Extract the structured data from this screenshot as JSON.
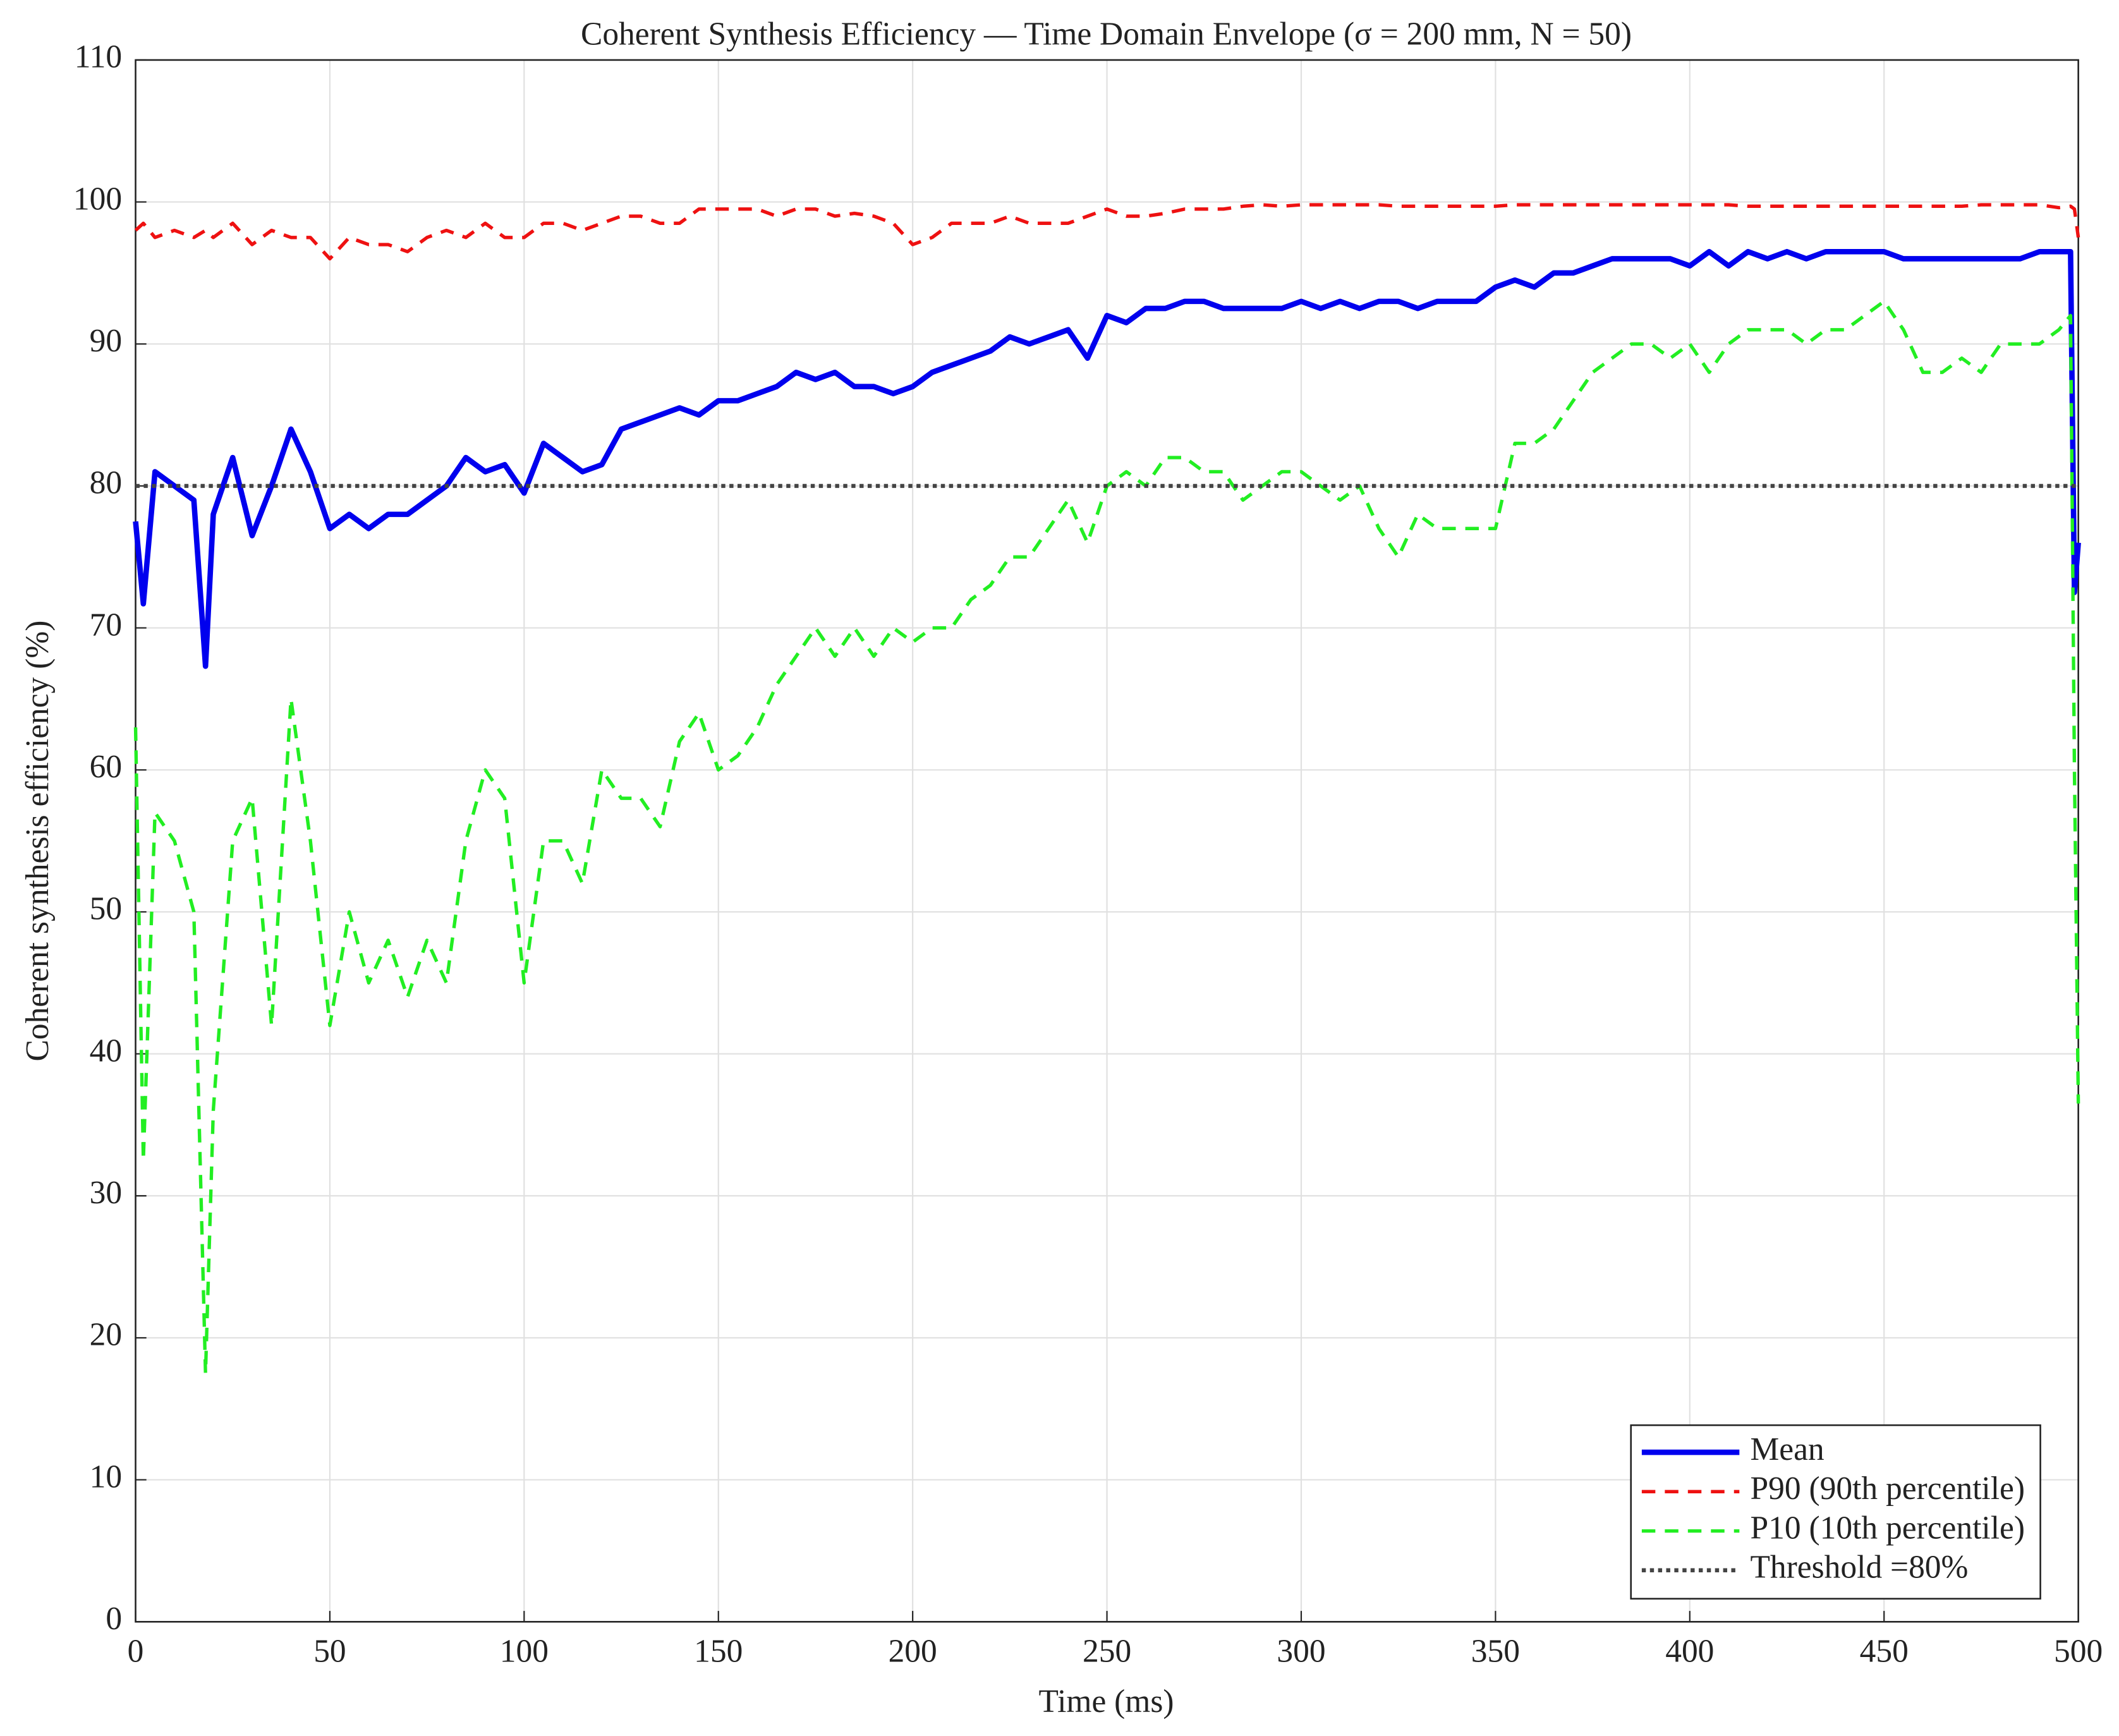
{
  "chart_data": {
    "type": "line",
    "title": "Coherent Synthesis Efficiency — Time Domain Envelope (σ = 200 mm, N = 50)",
    "x_label": "Time (ms)",
    "y_label": "Coherent synthesis efficiency (%)",
    "x": [
      0,
      2,
      5,
      10,
      15,
      18,
      20,
      25,
      30,
      35,
      40,
      45,
      50,
      55,
      60,
      65,
      70,
      75,
      80,
      85,
      90,
      95,
      100,
      105,
      110,
      115,
      120,
      125,
      130,
      135,
      140,
      145,
      150,
      155,
      160,
      165,
      170,
      175,
      180,
      185,
      190,
      195,
      200,
      205,
      210,
      215,
      220,
      225,
      230,
      235,
      240,
      245,
      250,
      255,
      260,
      265,
      270,
      275,
      280,
      285,
      290,
      295,
      300,
      305,
      310,
      315,
      320,
      325,
      330,
      335,
      340,
      345,
      350,
      355,
      360,
      365,
      370,
      375,
      380,
      385,
      390,
      395,
      400,
      405,
      410,
      415,
      420,
      425,
      430,
      435,
      440,
      445,
      450,
      455,
      460,
      465,
      470,
      475,
      480,
      485,
      490,
      495,
      498,
      499,
      500
    ],
    "series": [
      {
        "name": "Mean",
        "color": "#0000ee",
        "style": "solid",
        "width": 4,
        "values": [
          77.5,
          71.7,
          81,
          80,
          79,
          67.3,
          78,
          82,
          76.5,
          80,
          84,
          81,
          77,
          78,
          77,
          78,
          78,
          79,
          80,
          82,
          81,
          81.5,
          79.5,
          83,
          82,
          81,
          81.5,
          84,
          84.5,
          85,
          85.5,
          85,
          86,
          86,
          86.5,
          87,
          88,
          87.5,
          88,
          87,
          87,
          86.5,
          87,
          88,
          88.5,
          89,
          89.5,
          90.5,
          90,
          90.5,
          91,
          89,
          92,
          91.5,
          92.5,
          92.5,
          93,
          93,
          92.5,
          92.5,
          92.5,
          92.5,
          93,
          92.5,
          93,
          92.5,
          93,
          93,
          92.5,
          93,
          93,
          93,
          94,
          94.5,
          94,
          95,
          95,
          95.5,
          96,
          96,
          96,
          96,
          95.5,
          96.5,
          95.5,
          96.5,
          96,
          96.5,
          96,
          96.5,
          96.5,
          96.5,
          96.5,
          96,
          96,
          96,
          96,
          96,
          96,
          96,
          96.5,
          96.5,
          96.5,
          72.5,
          76
        ]
      },
      {
        "name": "P90 (90th percentile)",
        "color": "#ee1111",
        "style": "dashed",
        "width": 2.5,
        "values": [
          98,
          98.5,
          97.5,
          98,
          97.5,
          98,
          97.5,
          98.5,
          97,
          98,
          97.5,
          97.5,
          96,
          97.5,
          97,
          97,
          96.5,
          97.5,
          98,
          97.5,
          98.5,
          97.5,
          97.5,
          98.5,
          98.5,
          98,
          98.5,
          99,
          99,
          98.5,
          98.5,
          99.5,
          99.5,
          99.5,
          99.5,
          99,
          99.5,
          99.5,
          99,
          99.2,
          99,
          98.5,
          97,
          97.5,
          98.5,
          98.5,
          98.5,
          99,
          98.5,
          98.5,
          98.5,
          99,
          99.5,
          99,
          99,
          99.2,
          99.5,
          99.5,
          99.5,
          99.7,
          99.8,
          99.7,
          99.8,
          99.8,
          99.8,
          99.8,
          99.8,
          99.7,
          99.7,
          99.7,
          99.7,
          99.7,
          99.7,
          99.8,
          99.8,
          99.8,
          99.8,
          99.8,
          99.8,
          99.8,
          99.8,
          99.8,
          99.8,
          99.8,
          99.8,
          99.7,
          99.7,
          99.7,
          99.7,
          99.7,
          99.7,
          99.7,
          99.7,
          99.7,
          99.7,
          99.7,
          99.7,
          99.8,
          99.8,
          99.8,
          99.8,
          99.6,
          99.7,
          99.5,
          97.5
        ]
      },
      {
        "name": "P10 (10th percentile)",
        "color": "#22ee22",
        "style": "dashed",
        "width": 2.5,
        "values": [
          63,
          32.5,
          57,
          55,
          50,
          17.5,
          36,
          55,
          58,
          42,
          65,
          55,
          42,
          50,
          45,
          48,
          44,
          48,
          45,
          55,
          60,
          58,
          45,
          55,
          55,
          52,
          60,
          58,
          58,
          56,
          62,
          64,
          60,
          61,
          63,
          66,
          68,
          70,
          68,
          70,
          68,
          70,
          69,
          70,
          70,
          72,
          73,
          75,
          75,
          77,
          79,
          76,
          80,
          81,
          80,
          82,
          82,
          81,
          81,
          79,
          80,
          81,
          81,
          80,
          79,
          80,
          77,
          75,
          78,
          77,
          77,
          77,
          77,
          83,
          83,
          84,
          86,
          88,
          89,
          90,
          90,
          89,
          90,
          88,
          90,
          91,
          91,
          91,
          90,
          91,
          91,
          92,
          93,
          91,
          88,
          88,
          89,
          88,
          90,
          90,
          90,
          91,
          92,
          60,
          36.5
        ]
      }
    ],
    "threshold": {
      "name": "Threshold =80%",
      "value": 80,
      "color": "#444444",
      "style": "dotted"
    },
    "xlim": [
      0,
      500
    ],
    "xticks": [
      0,
      50,
      100,
      150,
      200,
      250,
      300,
      350,
      400,
      450,
      500
    ],
    "ylim": [
      0,
      110
    ],
    "yticks": [
      0,
      10,
      20,
      30,
      40,
      50,
      60,
      70,
      80,
      90,
      100,
      110
    ],
    "grid": true,
    "legend": "lower right"
  }
}
